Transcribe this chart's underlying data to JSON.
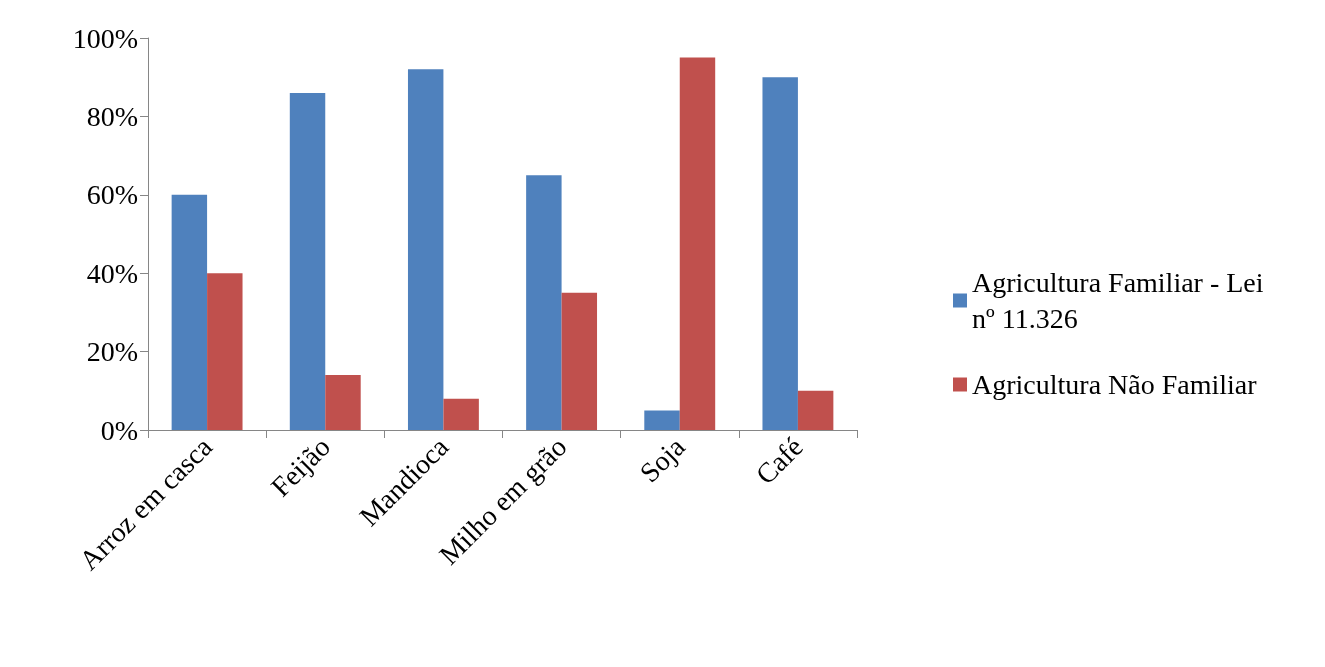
{
  "chart_data": {
    "type": "bar",
    "categories": [
      "Arroz em casca",
      "Feijão",
      "Mandioca",
      "Milho em grão",
      "Soja",
      "Café"
    ],
    "series": [
      {
        "name": "Agricultura Familiar - Lei nº 11.326",
        "color": "#4f81bd",
        "values": [
          60,
          86,
          92,
          65,
          5,
          90
        ]
      },
      {
        "name": "Agricultura Não Familiar",
        "color": "#c0504d",
        "values": [
          40,
          14,
          8,
          35,
          95,
          10
        ]
      }
    ],
    "ylim": [
      0,
      100
    ],
    "yticks": [
      {
        "value": 0,
        "label": "0%"
      },
      {
        "value": 20,
        "label": "20%"
      },
      {
        "value": 40,
        "label": "40%"
      },
      {
        "value": 60,
        "label": "60%"
      },
      {
        "value": 80,
        "label": "80%"
      },
      {
        "value": 100,
        "label": "100%"
      }
    ],
    "grid": false,
    "legend": "right"
  }
}
